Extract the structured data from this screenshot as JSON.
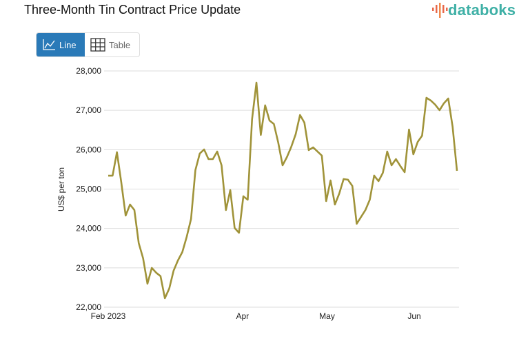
{
  "header": {
    "title": "Three-Month Tin Contract Price Update",
    "logo": "databoks"
  },
  "toggle": {
    "line_label": "Line",
    "table_label": "Table",
    "active": "Line"
  },
  "colors": {
    "line": "#a09339",
    "accent": "#2a7ab8",
    "grid": "#dddddd"
  },
  "chart_data": {
    "type": "line",
    "title": "Three-Month Tin Contract Price Update",
    "ylabel": "US$ per ton",
    "xlabel": "",
    "ylim": [
      22000,
      28000
    ],
    "yticks": [
      22000,
      23000,
      24000,
      25000,
      26000,
      27000,
      28000
    ],
    "ytick_labels": [
      "22,000",
      "23,000",
      "24,000",
      "25,000",
      "26,000",
      "27,000",
      "28,000"
    ],
    "xticks": [
      {
        "label": "Feb 2023",
        "index": 0
      },
      {
        "label": "Apr",
        "index": 30.8
      },
      {
        "label": "May",
        "index": 50.2
      },
      {
        "label": "Jun",
        "index": 70.2
      }
    ],
    "grid": true,
    "series": [
      {
        "name": "Tin price",
        "values": [
          25340,
          25340,
          25936,
          25167,
          24327,
          24607,
          24467,
          23628,
          23243,
          22596,
          22998,
          22876,
          22788,
          22228,
          22473,
          22928,
          23190,
          23400,
          23785,
          24240,
          25482,
          25901,
          26006,
          25761,
          25761,
          25954,
          25604,
          24467,
          24974,
          24012,
          23890,
          24817,
          24729,
          26776,
          27703,
          26374,
          27126,
          26741,
          26653,
          26181,
          25604,
          25814,
          26076,
          26391,
          26881,
          26688,
          25989,
          26059,
          25954,
          25849,
          24694,
          25219,
          24607,
          24887,
          25254,
          25237,
          25079,
          24117,
          24292,
          24467,
          24729,
          25342,
          25201,
          25412,
          25954,
          25604,
          25761,
          25587,
          25429,
          26513,
          25884,
          26199,
          26356,
          27318,
          27248,
          27143,
          27003,
          27178,
          27300,
          26583,
          25464
        ]
      }
    ]
  }
}
